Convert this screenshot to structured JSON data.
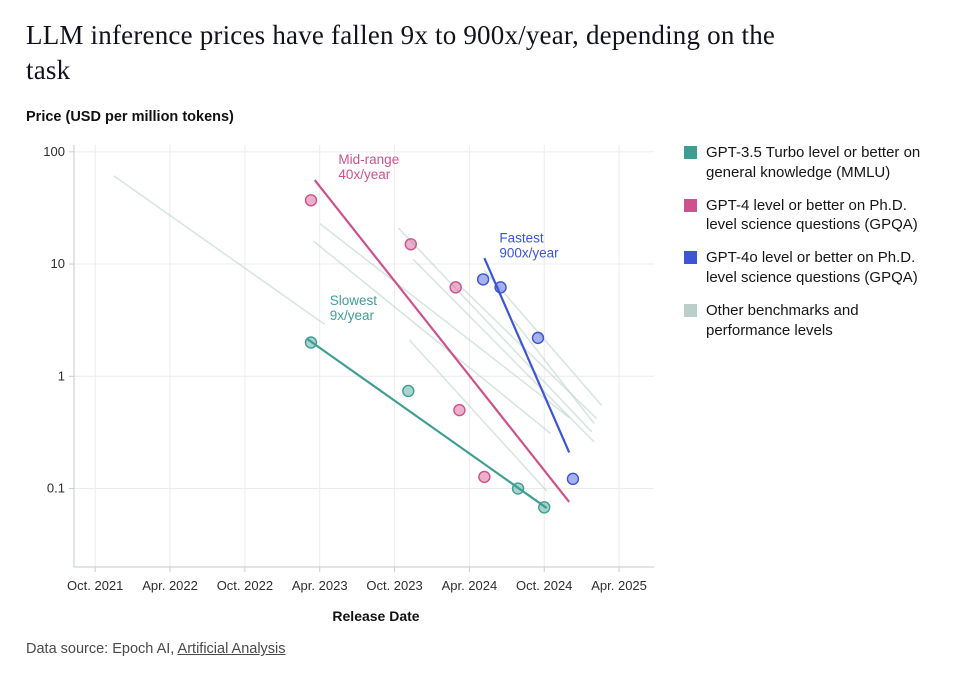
{
  "page": {
    "title": "LLM inference prices have fallen 9x to 900x/year, depending on the task",
    "footer": {
      "prefix": "Data source: Epoch AI, ",
      "link_label": "Artificial Analysis"
    }
  },
  "chart_data": {
    "type": "scatter",
    "title": "LLM inference prices have fallen 9x to 900x/year, depending on the task",
    "ylabel": "Price (USD per million tokens)",
    "xlabel": "Release Date",
    "x_tick_labels": [
      "Oct. 2021",
      "Apr. 2022",
      "Oct. 2022",
      "Apr. 2023",
      "Oct. 2023",
      "Apr. 2024",
      "Oct. 2024",
      "Apr. 2025"
    ],
    "x_tick_months": [
      0,
      6,
      12,
      18,
      24,
      30,
      36,
      42
    ],
    "x_unit": "months since Oct. 2021",
    "y_ticks": [
      100,
      10,
      1,
      0.1
    ],
    "xlim": [
      -1.7,
      44.8
    ],
    "ylim": [
      0.02,
      115
    ],
    "y_scale": "log",
    "grid": true,
    "legend_position": "right",
    "series": [
      {
        "name": "GPT-3.5 Turbo level or better on general knowledge (MMLU)",
        "color": "#3f9e94",
        "points": [
          [
            17.3,
            2.0
          ],
          [
            25.1,
            0.74
          ],
          [
            33.9,
            0.1
          ],
          [
            36.0,
            0.068
          ]
        ],
        "trend": [
          [
            17.0,
            2.15
          ],
          [
            36.2,
            0.067
          ]
        ],
        "annotation": {
          "text": [
            "Slowest",
            "9x/year"
          ],
          "x": 18.8,
          "y": 4.3
        }
      },
      {
        "name": "GPT-4 level or better on Ph.D. level science questions (GPQA)",
        "color": "#cf518c",
        "points": [
          [
            17.3,
            37
          ],
          [
            25.3,
            15
          ],
          [
            28.9,
            6.2
          ],
          [
            29.2,
            0.5
          ],
          [
            31.2,
            0.127
          ]
        ],
        "trend": [
          [
            17.6,
            56
          ],
          [
            38.0,
            0.076
          ]
        ],
        "annotation": {
          "text": [
            "Mid-range",
            "40x/year"
          ],
          "x": 19.5,
          "y": 78
        }
      },
      {
        "name": "GPT-4o level or better on Ph.D. level science questions (GPQA)",
        "color": "#3c55d6",
        "points": [
          [
            31.1,
            7.3
          ],
          [
            32.5,
            6.2
          ],
          [
            35.5,
            2.2
          ],
          [
            38.3,
            0.122
          ]
        ],
        "trend": [
          [
            31.2,
            11.3
          ],
          [
            38.0,
            0.21
          ]
        ],
        "annotation": {
          "text": [
            "Fastest",
            "900x/year"
          ],
          "x": 32.4,
          "y": 15.5
        }
      },
      {
        "name": "Other benchmarks and performance levels",
        "color": "#b9cfca",
        "lines": [
          [
            [
              1.5,
              61
            ],
            [
              18.4,
              2.9
            ]
          ],
          [
            [
              17.5,
              16
            ],
            [
              36.5,
              0.31
            ]
          ],
          [
            [
              18.0,
              23
            ],
            [
              38.0,
              0.43
            ]
          ],
          [
            [
              24.3,
              21
            ],
            [
              39.8,
              0.32
            ]
          ],
          [
            [
              25.5,
              11
            ],
            [
              40.0,
              0.26
            ]
          ],
          [
            [
              29.3,
              6.3
            ],
            [
              40.2,
              0.42
            ]
          ],
          [
            [
              31.2,
              8.8
            ],
            [
              40.6,
              0.55
            ]
          ],
          [
            [
              25.2,
              2.1
            ],
            [
              36.2,
              0.095
            ]
          ],
          [
            [
              33.6,
              3.1
            ],
            [
              40.0,
              0.38
            ]
          ]
        ]
      }
    ]
  }
}
